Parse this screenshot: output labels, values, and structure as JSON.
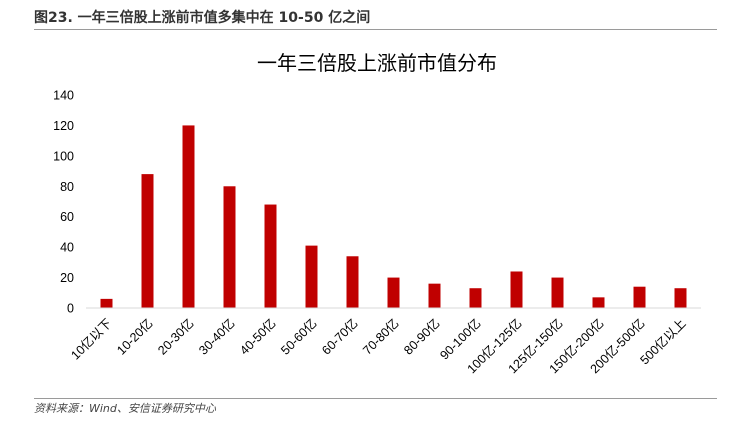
{
  "caption": "图23. 一年三倍股上涨前市值多集中在 10-50 亿之间",
  "source": "资料来源：Wind、安信证券研究中心",
  "colors": {
    "bar": "#c00000",
    "axis": "#d9d9d9",
    "rule": "#9a9a9a"
  },
  "chart_data": {
    "type": "bar",
    "title": "一年三倍股上涨前市值分布",
    "xlabel": "",
    "ylabel": "",
    "ylim": [
      0,
      140
    ],
    "yticks": [
      0,
      20,
      40,
      60,
      80,
      100,
      120,
      140
    ],
    "grid": false,
    "legend": "none",
    "categories": [
      "10亿以下",
      "10-20亿",
      "20-30亿",
      "30-40亿",
      "40-50亿",
      "50-60亿",
      "60-70亿",
      "70-80亿",
      "80-90亿",
      "90-100亿",
      "100亿-125亿",
      "125亿-150亿",
      "150亿-200亿",
      "200亿-500亿",
      "500亿以上"
    ],
    "values": [
      6,
      88,
      120,
      80,
      68,
      41,
      34,
      20,
      16,
      13,
      24,
      20,
      7,
      14,
      13
    ]
  }
}
